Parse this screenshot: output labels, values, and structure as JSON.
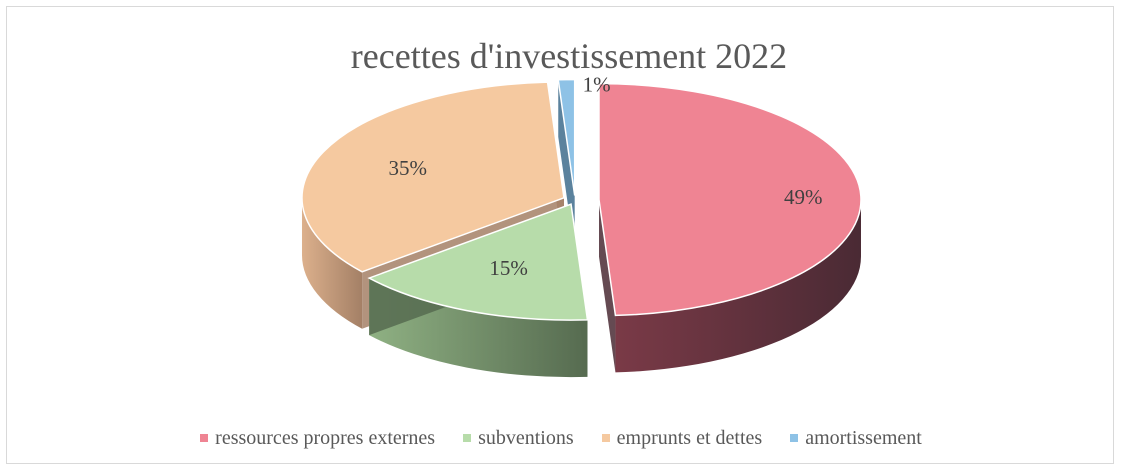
{
  "chart_data": {
    "type": "pie",
    "title": "recettes d'investissement 2022",
    "categories": [
      "ressources propres externes",
      "subventions",
      "emprunts et dettes",
      "amortissement"
    ],
    "values": [
      49,
      15,
      35,
      1
    ],
    "labels": [
      "49%",
      "15%",
      "35%",
      "1%"
    ],
    "three_d": true,
    "exploded": true,
    "legend_position": "bottom",
    "colors": {
      "top": [
        "#ef8493",
        "#b7dcaa",
        "#f5c9a0",
        "#8ec2e6"
      ],
      "side_light": [
        "#7a3a47",
        "#8fb183",
        "#dcb08c",
        "#5f93b8"
      ],
      "side_dark": [
        "#4a2a34",
        "#566b50",
        "#a48066",
        "#3e6c8c"
      ]
    }
  }
}
